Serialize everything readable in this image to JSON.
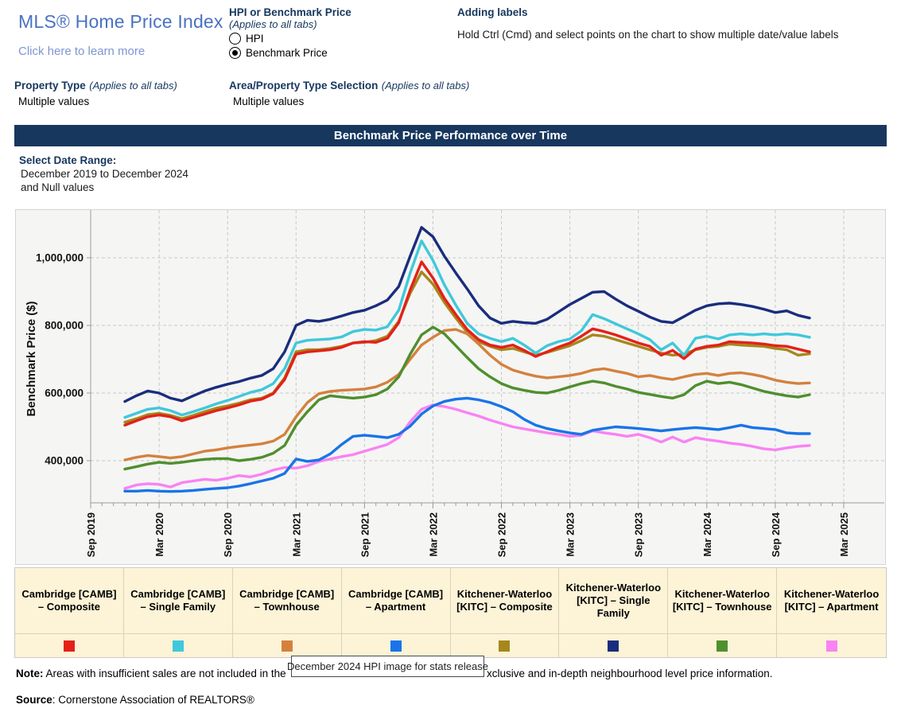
{
  "header": {
    "title": "MLS® Home Price Index",
    "learn_more": "Click here to learn more",
    "hpi_group": {
      "label": "HPI or Benchmark Price",
      "sublabel": "(Applies to all tabs)",
      "options": [
        {
          "label": "HPI",
          "selected": false
        },
        {
          "label": "Benchmark Price",
          "selected": true
        }
      ]
    },
    "adding_labels": {
      "label": "Adding labels",
      "instruction": "Hold Ctrl (Cmd) and select points on the chart to show multiple date/value labels"
    },
    "property_type": {
      "label": "Property Type",
      "sublabel": "(Applies to all tabs)",
      "value": "Multiple values"
    },
    "area_selection": {
      "label": "Area/Property Type Selection",
      "sublabel": "(Applies to all tabs)",
      "value": "Multiple values"
    }
  },
  "banner": {
    "title": "Benchmark Price Performance over Time"
  },
  "date_range": {
    "label": "Select Date Range:",
    "line1": "December 2019 to December 2024",
    "line2": "and Null values"
  },
  "tooltip": {
    "text": "December 2024 HPI image for stats release"
  },
  "footer": {
    "note_label": "Note:",
    "note_prefix": " Areas with insufficient sales are not included in the ",
    "note_suffix": "xclusive and in-depth neighbourhood level price information.",
    "source_label": "Source",
    "source_text": ": Cornerstone Association of REALTORS®"
  },
  "colors": {
    "heading_navy": "#17375e",
    "banner_bg": "#17375e",
    "title_blue": "#4a72c0",
    "link_blue": "#7d96d2",
    "chart_bg": "#f5f5f4",
    "legend_bg": "#fdf3d7"
  },
  "chart_data": {
    "type": "line",
    "title": "Benchmark Price Performance over Time",
    "xlabel": "",
    "ylabel": "Benchmark Price ($)",
    "y_ticks": [
      "400,000",
      "600,000",
      "800,000",
      "1,000,000"
    ],
    "y_tick_values": [
      400000,
      600000,
      800000,
      1000000
    ],
    "ylim": [
      275000,
      1140000
    ],
    "x_ticks": [
      "Sep 2019",
      "Mar 2020",
      "Sep 2020",
      "Mar 2021",
      "Sep 2021",
      "Mar 2022",
      "Sep 2022",
      "Mar 2023",
      "Sep 2023",
      "Mar 2024",
      "Sep 2024",
      "Mar 2025"
    ],
    "x_start": "Dec 2019",
    "x_end": "Dec 2024",
    "interval": "monthly",
    "start_offset_months": 3,
    "grid": true,
    "legend_position": "bottom",
    "series": [
      {
        "name": "Cambridge [CAMB] – Composite",
        "color": "#e32119",
        "values": [
          505000,
          518000,
          530000,
          535000,
          530000,
          518000,
          528000,
          538000,
          548000,
          556000,
          565000,
          576000,
          582000,
          598000,
          640000,
          715000,
          722000,
          725000,
          728000,
          735000,
          748000,
          752000,
          750000,
          762000,
          808000,
          905000,
          988000,
          940000,
          880000,
          832000,
          788000,
          758000,
          742000,
          735000,
          742000,
          726000,
          708000,
          722000,
          736000,
          748000,
          768000,
          790000,
          782000,
          772000,
          760000,
          748000,
          738000,
          712000,
          726000,
          702000,
          730000,
          738000,
          742000,
          752000,
          750000,
          748000,
          745000,
          740000,
          738000,
          730000,
          722000
        ]
      },
      {
        "name": "Cambridge [CAMB] – Single Family",
        "color": "#3fc8dc",
        "values": [
          528000,
          540000,
          552000,
          556000,
          548000,
          535000,
          545000,
          556000,
          568000,
          578000,
          590000,
          602000,
          610000,
          628000,
          672000,
          748000,
          756000,
          758000,
          760000,
          766000,
          782000,
          788000,
          786000,
          796000,
          845000,
          955000,
          1050000,
          992000,
          920000,
          860000,
          806000,
          775000,
          762000,
          752000,
          762000,
          742000,
          718000,
          740000,
          752000,
          760000,
          784000,
          832000,
          820000,
          805000,
          790000,
          775000,
          758000,
          728000,
          748000,
          712000,
          762000,
          768000,
          760000,
          772000,
          775000,
          772000,
          775000,
          772000,
          775000,
          772000,
          765000
        ]
      },
      {
        "name": "Cambridge [CAMB] – Townhouse",
        "color": "#d4813e",
        "values": [
          402000,
          410000,
          415000,
          412000,
          408000,
          412000,
          420000,
          428000,
          432000,
          438000,
          442000,
          446000,
          450000,
          458000,
          478000,
          530000,
          572000,
          598000,
          605000,
          608000,
          610000,
          612000,
          618000,
          632000,
          655000,
          700000,
          742000,
          765000,
          785000,
          788000,
          775000,
          745000,
          712000,
          685000,
          668000,
          658000,
          650000,
          645000,
          648000,
          652000,
          658000,
          668000,
          672000,
          665000,
          658000,
          648000,
          652000,
          645000,
          640000,
          648000,
          655000,
          658000,
          652000,
          658000,
          660000,
          655000,
          648000,
          638000,
          632000,
          628000,
          630000
        ]
      },
      {
        "name": "Cambridge [CAMB] – Apartment",
        "color": "#1874e8",
        "values": [
          310000,
          310000,
          312000,
          310000,
          309000,
          310000,
          312000,
          315000,
          318000,
          320000,
          325000,
          332000,
          340000,
          348000,
          362000,
          405000,
          398000,
          402000,
          420000,
          448000,
          472000,
          475000,
          472000,
          468000,
          478000,
          502000,
          538000,
          562000,
          575000,
          582000,
          585000,
          580000,
          572000,
          560000,
          545000,
          522000,
          505000,
          495000,
          488000,
          482000,
          478000,
          490000,
          495000,
          500000,
          498000,
          495000,
          492000,
          488000,
          492000,
          495000,
          498000,
          495000,
          492000,
          498000,
          505000,
          498000,
          495000,
          492000,
          482000,
          480000,
          480000
        ]
      },
      {
        "name": "Kitchener-Waterloo [KITC] – Composite",
        "color": "#a6871d",
        "values": [
          514000,
          524000,
          536000,
          540000,
          534000,
          524000,
          534000,
          545000,
          555000,
          562000,
          570000,
          580000,
          585000,
          600000,
          645000,
          722000,
          728000,
          728000,
          732000,
          738000,
          748000,
          750000,
          755000,
          768000,
          812000,
          895000,
          958000,
          922000,
          868000,
          822000,
          780000,
          752000,
          738000,
          728000,
          732000,
          722000,
          712000,
          720000,
          730000,
          740000,
          755000,
          772000,
          768000,
          758000,
          748000,
          738000,
          728000,
          718000,
          712000,
          715000,
          728000,
          735000,
          738000,
          745000,
          742000,
          740000,
          738000,
          732000,
          728000,
          712000,
          716000
        ]
      },
      {
        "name": "Kitchener-Waterloo [KITC] – Single Family",
        "color": "#1a2d7d",
        "values": [
          575000,
          592000,
          606000,
          600000,
          585000,
          577000,
          592000,
          606000,
          617000,
          626000,
          634000,
          644000,
          652000,
          672000,
          722000,
          800000,
          815000,
          812000,
          818000,
          828000,
          838000,
          845000,
          858000,
          875000,
          915000,
          1005000,
          1090000,
          1062000,
          1005000,
          955000,
          908000,
          858000,
          822000,
          806000,
          812000,
          808000,
          806000,
          818000,
          840000,
          862000,
          880000,
          898000,
          900000,
          878000,
          858000,
          842000,
          825000,
          812000,
          808000,
          826000,
          845000,
          858000,
          864000,
          866000,
          862000,
          856000,
          848000,
          838000,
          843000,
          830000,
          822000
        ]
      },
      {
        "name": "Kitchener-Waterloo [KITC] – Townhouse",
        "color": "#4f8f2d",
        "values": [
          375000,
          382000,
          390000,
          395000,
          392000,
          395000,
          400000,
          404000,
          406000,
          406000,
          400000,
          404000,
          410000,
          422000,
          445000,
          505000,
          545000,
          580000,
          592000,
          588000,
          585000,
          588000,
          595000,
          612000,
          648000,
          715000,
          772000,
          795000,
          775000,
          740000,
          705000,
          672000,
          648000,
          628000,
          615000,
          608000,
          602000,
          600000,
          608000,
          618000,
          628000,
          635000,
          630000,
          620000,
          612000,
          602000,
          596000,
          590000,
          585000,
          595000,
          622000,
          635000,
          628000,
          632000,
          625000,
          615000,
          605000,
          598000,
          592000,
          588000,
          595000
        ]
      },
      {
        "name": "Kitchener-Waterloo [KITC] – Apartment",
        "color": "#f883f3",
        "values": [
          318000,
          328000,
          332000,
          330000,
          322000,
          335000,
          340000,
          345000,
          342000,
          348000,
          356000,
          352000,
          360000,
          372000,
          380000,
          378000,
          385000,
          398000,
          405000,
          412000,
          418000,
          428000,
          438000,
          448000,
          468000,
          515000,
          552000,
          565000,
          560000,
          552000,
          542000,
          532000,
          520000,
          510000,
          500000,
          494000,
          488000,
          482000,
          478000,
          472000,
          475000,
          488000,
          482000,
          478000,
          472000,
          478000,
          468000,
          455000,
          470000,
          455000,
          468000,
          462000,
          458000,
          452000,
          448000,
          442000,
          435000,
          432000,
          438000,
          442000,
          445000
        ]
      }
    ]
  }
}
